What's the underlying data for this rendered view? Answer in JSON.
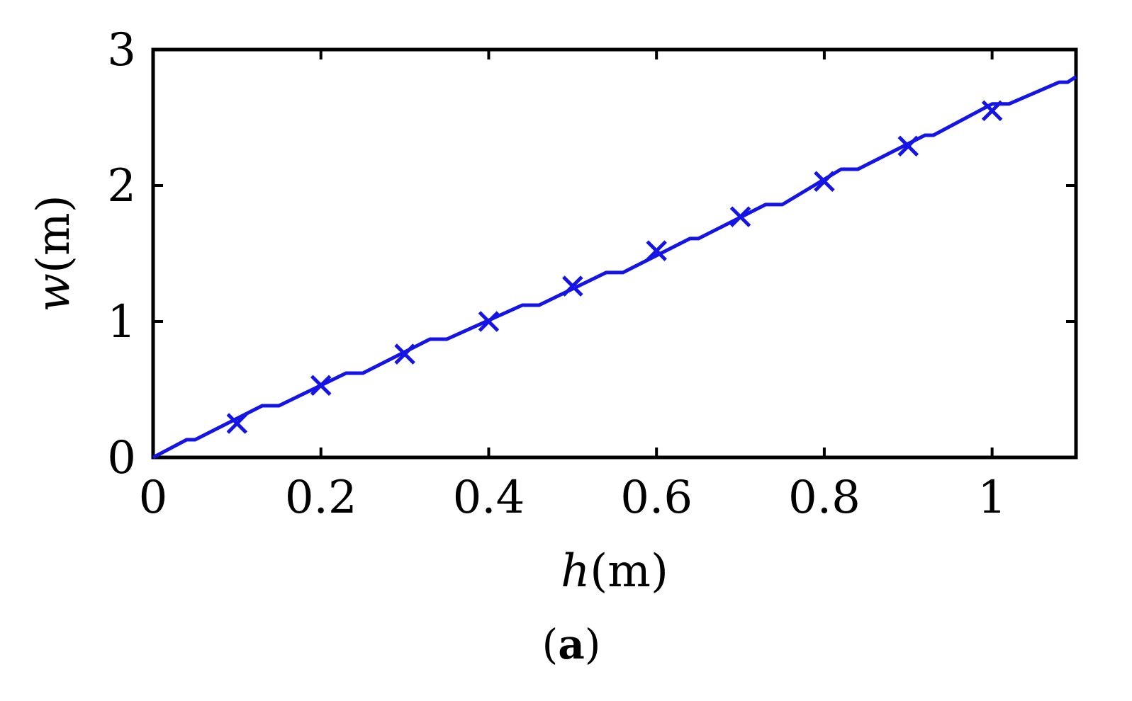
{
  "chart_data": {
    "type": "line",
    "title": "",
    "xlabel": "h(m)",
    "xlabel_var": "h",
    "xlabel_unit": "(m)",
    "ylabel": "w(m)",
    "ylabel_var": "w",
    "ylabel_unit": "(m)",
    "xlim": [
      0,
      1.1
    ],
    "ylim": [
      0,
      3
    ],
    "xticks": [
      0,
      0.2,
      0.4,
      0.6,
      0.8,
      1
    ],
    "xtick_labels": [
      "0",
      "0.2",
      "0.4",
      "0.6",
      "0.8",
      "1"
    ],
    "yticks": [
      0,
      1,
      2,
      3
    ],
    "ytick_labels": [
      "0",
      "1",
      "2",
      "3"
    ],
    "grid": false,
    "series": [
      {
        "line_x": [
          0,
          0.04,
          0.05,
          0.13,
          0.15,
          0.23,
          0.25,
          0.33,
          0.35,
          0.44,
          0.46,
          0.54,
          0.56,
          0.64,
          0.65,
          0.73,
          0.75,
          0.82,
          0.84,
          0.92,
          0.93,
          1.0,
          1.02,
          1.08,
          1.09,
          1.1
        ],
        "line_y": [
          0,
          0.13,
          0.13,
          0.38,
          0.38,
          0.62,
          0.62,
          0.87,
          0.87,
          1.12,
          1.12,
          1.36,
          1.36,
          1.61,
          1.61,
          1.86,
          1.86,
          2.12,
          2.12,
          2.37,
          2.37,
          2.6,
          2.6,
          2.76,
          2.76,
          2.8
        ],
        "marker_x": [
          0.1,
          0.2,
          0.3,
          0.4,
          0.5,
          0.6,
          0.7,
          0.8,
          0.9,
          1.0
        ],
        "marker_y": [
          0.25,
          0.53,
          0.76,
          1.0,
          1.26,
          1.52,
          1.77,
          2.03,
          2.29,
          2.55
        ],
        "marker": "x",
        "color": "#1414e6"
      }
    ],
    "caption_open": "(",
    "caption_letter": "a",
    "caption_close": ")"
  }
}
